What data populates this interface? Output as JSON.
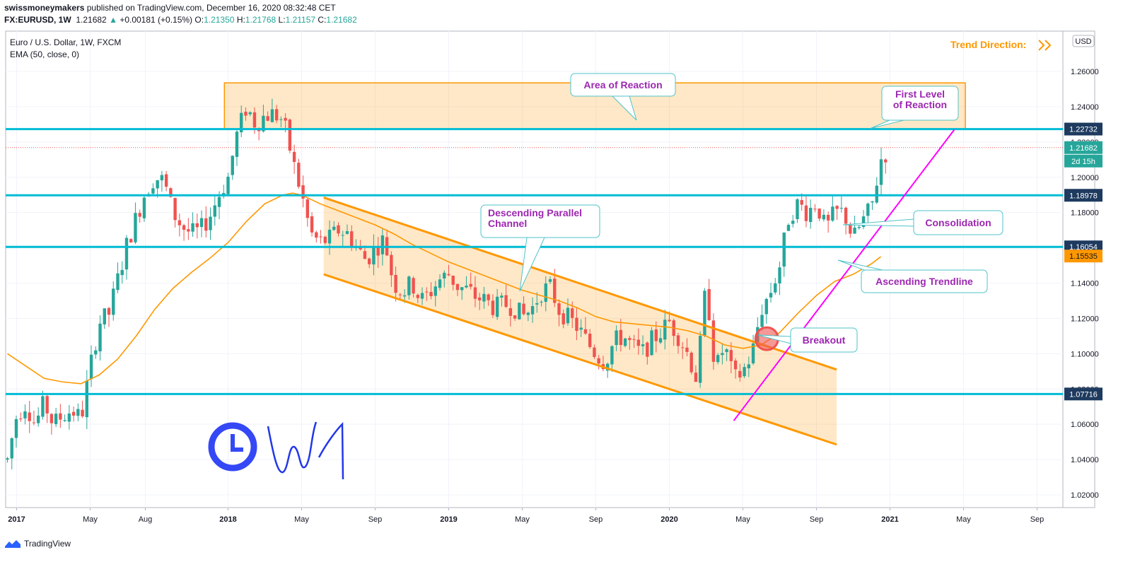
{
  "header": {
    "publisher": "swissmoneymakers",
    "published_text": "published on TradingView.com, December 16, 2020 08:32:48 CET",
    "symbol": "FX:EURUSD, 1W",
    "last": "1.21682",
    "change": "+0.00181 (+0.15%)",
    "o_label": "O:",
    "o_value": "1.21350",
    "h_label": "H:",
    "h_value": "1.21768",
    "l_label": "L:",
    "l_value": "1.21157",
    "c_label": "C:",
    "c_value": "1.21682"
  },
  "legend": {
    "instrument": "Euro / U.S. Dollar, 1W, FXCM",
    "indicator": "EMA (50, close, 0)"
  },
  "trend_direction_label": "Trend Direction:",
  "currency_label": "USD",
  "footer": {
    "brand": "TradingView"
  },
  "chart_data": {
    "type": "candlestick",
    "interval": "1W",
    "ylim": [
      1.01,
      1.27
    ],
    "y_ticks": [
      "1.26000",
      "1.24000",
      "1.22000",
      "1.20000",
      "1.18000",
      "1.16000",
      "1.14000",
      "1.12000",
      "1.10000",
      "1.08000",
      "1.06000",
      "1.04000",
      "1.02000"
    ],
    "x_ticks": [
      {
        "label": "2017",
        "t": 0.5
      },
      {
        "label": "May",
        "t": 4.5
      },
      {
        "label": "Aug",
        "t": 7.5
      },
      {
        "label": "2018",
        "t": 12
      },
      {
        "label": "May",
        "t": 16
      },
      {
        "label": "Sep",
        "t": 20
      },
      {
        "label": "2019",
        "t": 24
      },
      {
        "label": "May",
        "t": 28
      },
      {
        "label": "Sep",
        "t": 32
      },
      {
        "label": "2020",
        "t": 36
      },
      {
        "label": "May",
        "t": 40
      },
      {
        "label": "Sep",
        "t": 44
      },
      {
        "label": "2021",
        "t": 48
      },
      {
        "label": "May",
        "t": 52
      },
      {
        "label": "Sep",
        "t": 56
      }
    ],
    "price_path": [
      [
        0.0,
        1.04
      ],
      [
        0.5,
        1.065
      ],
      [
        1.0,
        1.072
      ],
      [
        1.5,
        1.06
      ],
      [
        2.0,
        1.072
      ],
      [
        2.5,
        1.06
      ],
      [
        3.0,
        1.065
      ],
      [
        3.5,
        1.068
      ],
      [
        4.0,
        1.063
      ],
      [
        4.5,
        1.092
      ],
      [
        5.0,
        1.118
      ],
      [
        5.5,
        1.122
      ],
      [
        6.0,
        1.142
      ],
      [
        6.5,
        1.162
      ],
      [
        7.0,
        1.177
      ],
      [
        7.5,
        1.192
      ],
      [
        8.0,
        1.2
      ],
      [
        8.5,
        1.198
      ],
      [
        9.0,
        1.18
      ],
      [
        9.5,
        1.172
      ],
      [
        10.0,
        1.168
      ],
      [
        10.5,
        1.17
      ],
      [
        11.0,
        1.178
      ],
      [
        11.5,
        1.19
      ],
      [
        12.0,
        1.2
      ],
      [
        12.5,
        1.225
      ],
      [
        13.0,
        1.24
      ],
      [
        13.5,
        1.23
      ],
      [
        14.0,
        1.235
      ],
      [
        14.5,
        1.236
      ],
      [
        15.0,
        1.232
      ],
      [
        15.5,
        1.21
      ],
      [
        16.0,
        1.19
      ],
      [
        16.5,
        1.168
      ],
      [
        17.0,
        1.163
      ],
      [
        17.5,
        1.165
      ],
      [
        18.0,
        1.17
      ],
      [
        18.5,
        1.168
      ],
      [
        19.0,
        1.16
      ],
      [
        19.5,
        1.153
      ],
      [
        20.0,
        1.16
      ],
      [
        20.5,
        1.165
      ],
      [
        21.0,
        1.14
      ],
      [
        21.5,
        1.135
      ],
      [
        22.0,
        1.14
      ],
      [
        22.5,
        1.13
      ],
      [
        23.0,
        1.135
      ],
      [
        23.5,
        1.142
      ],
      [
        24.0,
        1.145
      ],
      [
        24.5,
        1.138
      ],
      [
        25.0,
        1.136
      ],
      [
        25.5,
        1.132
      ],
      [
        26.0,
        1.13
      ],
      [
        26.5,
        1.126
      ],
      [
        27.0,
        1.128
      ],
      [
        27.5,
        1.127
      ],
      [
        28.0,
        1.121
      ],
      [
        28.5,
        1.125
      ],
      [
        29.0,
        1.135
      ],
      [
        29.5,
        1.138
      ],
      [
        30.0,
        1.125
      ],
      [
        30.5,
        1.12
      ],
      [
        31.0,
        1.115
      ],
      [
        31.5,
        1.107
      ],
      [
        32.0,
        1.1
      ],
      [
        32.5,
        1.095
      ],
      [
        33.0,
        1.107
      ],
      [
        33.5,
        1.11
      ],
      [
        34.0,
        1.104
      ],
      [
        34.5,
        1.1
      ],
      [
        35.0,
        1.107
      ],
      [
        35.5,
        1.112
      ],
      [
        36.0,
        1.118
      ],
      [
        36.5,
        1.11
      ],
      [
        37.0,
        1.1
      ],
      [
        37.5,
        1.085
      ],
      [
        38.0,
        1.14
      ],
      [
        38.5,
        1.09
      ],
      [
        39.0,
        1.105
      ],
      [
        39.5,
        1.085
      ],
      [
        40.0,
        1.09
      ],
      [
        40.5,
        1.1
      ],
      [
        41.0,
        1.125
      ],
      [
        41.5,
        1.135
      ],
      [
        42.0,
        1.15
      ],
      [
        42.5,
        1.178
      ],
      [
        43.0,
        1.185
      ],
      [
        43.5,
        1.18
      ],
      [
        44.0,
        1.186
      ],
      [
        44.5,
        1.17
      ],
      [
        45.0,
        1.18
      ],
      [
        45.5,
        1.18
      ],
      [
        46.0,
        1.165
      ],
      [
        46.5,
        1.175
      ],
      [
        47.0,
        1.183
      ],
      [
        47.5,
        1.21
      ],
      [
        48.0,
        1.217
      ]
    ],
    "ema50": [
      [
        0.0,
        1.1
      ],
      [
        1.0,
        1.093
      ],
      [
        2.0,
        1.086
      ],
      [
        3.0,
        1.084
      ],
      [
        4.0,
        1.083
      ],
      [
        5.0,
        1.088
      ],
      [
        6.0,
        1.097
      ],
      [
        7.0,
        1.11
      ],
      [
        8.0,
        1.125
      ],
      [
        9.0,
        1.137
      ],
      [
        10.0,
        1.146
      ],
      [
        11.0,
        1.154
      ],
      [
        12.0,
        1.163
      ],
      [
        13.0,
        1.175
      ],
      [
        14.0,
        1.185
      ],
      [
        15.0,
        1.19
      ],
      [
        15.5,
        1.191
      ],
      [
        16.0,
        1.19
      ],
      [
        17.0,
        1.185
      ],
      [
        18.0,
        1.181
      ],
      [
        19.0,
        1.177
      ],
      [
        20.0,
        1.173
      ],
      [
        21.0,
        1.168
      ],
      [
        22.0,
        1.162
      ],
      [
        23.0,
        1.157
      ],
      [
        24.0,
        1.152
      ],
      [
        25.0,
        1.148
      ],
      [
        26.0,
        1.144
      ],
      [
        27.0,
        1.14
      ],
      [
        28.0,
        1.136
      ],
      [
        29.0,
        1.133
      ],
      [
        30.0,
        1.13
      ],
      [
        31.0,
        1.126
      ],
      [
        32.0,
        1.121
      ],
      [
        33.0,
        1.118
      ],
      [
        34.0,
        1.117
      ],
      [
        35.0,
        1.116
      ],
      [
        36.0,
        1.115
      ],
      [
        37.0,
        1.113
      ],
      [
        38.0,
        1.11
      ],
      [
        39.0,
        1.105
      ],
      [
        40.0,
        1.103
      ],
      [
        41.0,
        1.105
      ],
      [
        42.0,
        1.112
      ],
      [
        43.0,
        1.123
      ],
      [
        44.0,
        1.133
      ],
      [
        45.0,
        1.141
      ],
      [
        46.0,
        1.145
      ],
      [
        47.0,
        1.151
      ],
      [
        47.5,
        1.155
      ]
    ],
    "horizontal_levels": [
      {
        "value": 1.22732,
        "label": "1.22732",
        "color": "#00bcd4"
      },
      {
        "value": 1.18978,
        "label": "1.18978",
        "color": "#00bcd4"
      },
      {
        "value": 1.16054,
        "label": "1.16054",
        "color": "#00bcd4"
      },
      {
        "value": 1.07716,
        "label": "1.07716",
        "color": "#00bcd4"
      }
    ],
    "current_price": {
      "value": 1.21682,
      "label": "1.21682",
      "countdown": "2d 15h",
      "color": "#26a69a"
    },
    "ema_last": {
      "value": 1.15535,
      "label": "1.15535",
      "color": "#ff9800"
    },
    "reaction_zone": {
      "t0": 11.8,
      "t1": 52.1,
      "y0": 1.2273,
      "y1": 1.2535
    },
    "channel": {
      "upper": [
        [
          17.2,
          1.1885
        ],
        [
          45.1,
          1.091
        ]
      ],
      "lower": [
        [
          17.2,
          1.145
        ],
        [
          45.1,
          1.0485
        ]
      ]
    },
    "ascending_trendline": [
      [
        39.5,
        1.062
      ],
      [
        51.5,
        1.227
      ]
    ],
    "breakout_point": {
      "t": 41.3,
      "y": 1.1085
    },
    "annotations": [
      {
        "text": "Area of Reaction"
      },
      {
        "text": "First Level of Reaction"
      },
      {
        "text": "Descending Parallel Channel"
      },
      {
        "text": "Consolidation"
      },
      {
        "text": "Ascending Trendline"
      },
      {
        "text": "Breakout"
      }
    ],
    "colors": {
      "up": "#26a69a",
      "down": "#ef5350",
      "ema": "#ff9800",
      "levels": "#00bcd4",
      "channel": "#ff9800",
      "trend": "#ff00ff",
      "label_text": "#9c27b0"
    }
  }
}
